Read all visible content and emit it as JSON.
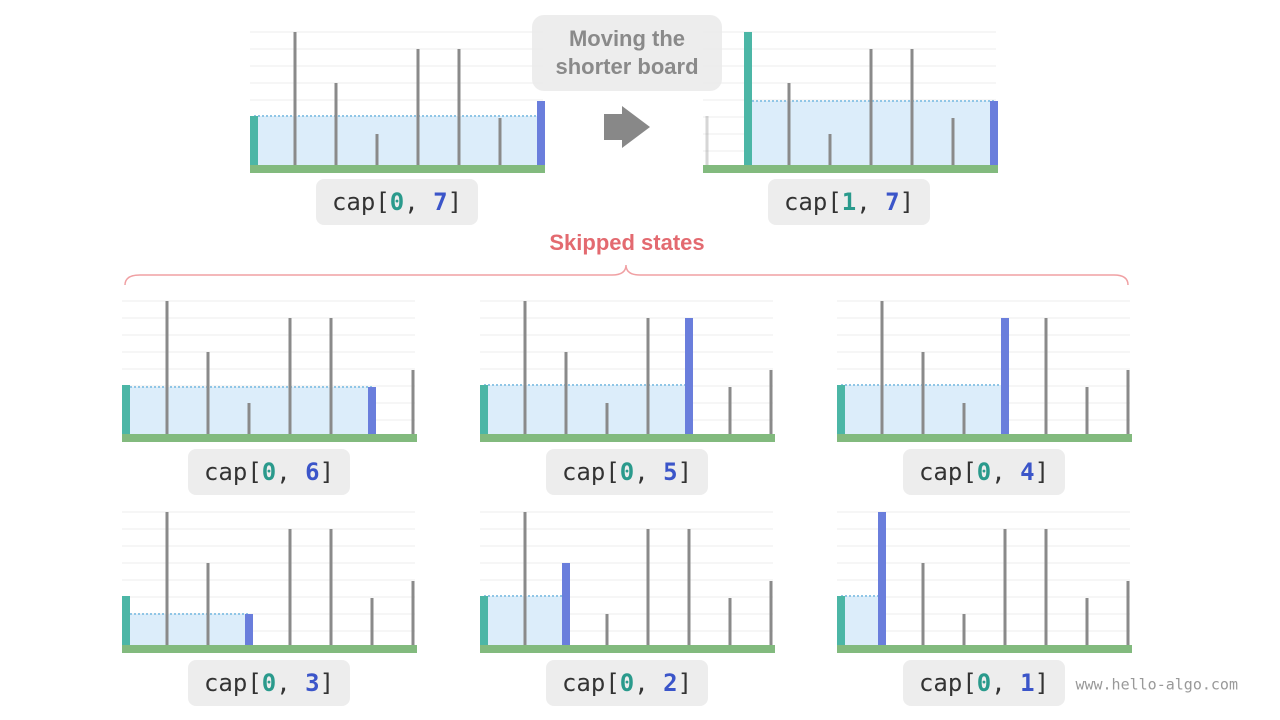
{
  "title_lines": [
    "Moving the",
    "shorter board"
  ],
  "top": [
    {
      "text": "cap[",
      "i": "0",
      "sep": ", ",
      "j": "7",
      "end": "]"
    },
    {
      "text": "cap[",
      "i": "1",
      "sep": ", ",
      "j": "7",
      "end": "]"
    }
  ],
  "skipped_label": "Skipped states",
  "skipped": [
    {
      "text": "cap[",
      "i": "0",
      "sep": ", ",
      "j": "6",
      "end": "]"
    },
    {
      "text": "cap[",
      "i": "0",
      "sep": ", ",
      "j": "5",
      "end": "]"
    },
    {
      "text": "cap[",
      "i": "0",
      "sep": ", ",
      "j": "4",
      "end": "]"
    },
    {
      "text": "cap[",
      "i": "0",
      "sep": ", ",
      "j": "3",
      "end": "]"
    },
    {
      "text": "cap[",
      "i": "0",
      "sep": ", ",
      "j": "2",
      "end": "]"
    },
    {
      "text": "cap[",
      "i": "0",
      "sep": ", ",
      "j": "1",
      "end": "]"
    }
  ],
  "watermark": "www.hello-algo.com"
}
